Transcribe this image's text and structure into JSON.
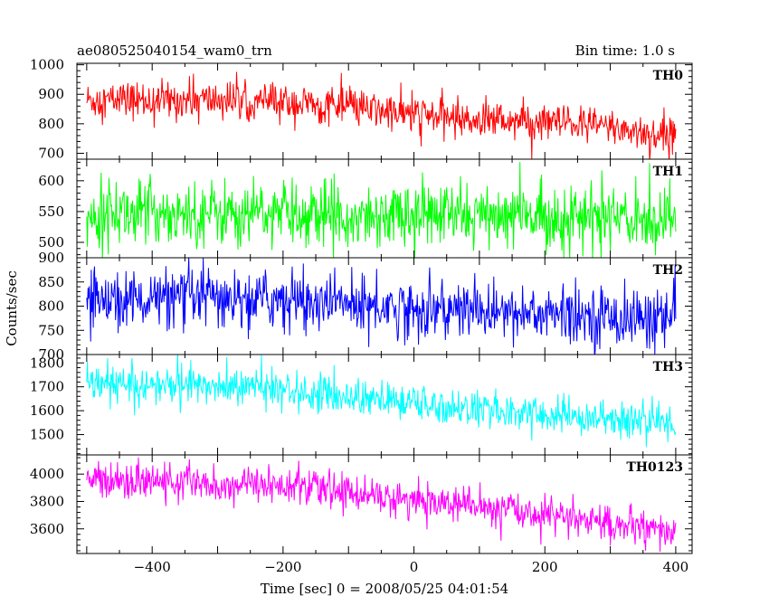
{
  "header": {
    "title": "ae080525040154_wam0_trn",
    "bin_time": "Bin time: 1.0 s"
  },
  "chart_data": {
    "type": "line",
    "xlabel": "Time [sec] 0 = 2008/05/25 04:01:54",
    "ylabel": "Counts/sec",
    "xlim": [
      -515,
      425
    ],
    "x_ticks": [
      -400,
      -200,
      0,
      200,
      400
    ],
    "x_tick_labels": [
      "−400",
      "−200",
      "0",
      "200",
      "400"
    ],
    "x_range": [
      -500,
      400
    ],
    "grid": false,
    "panels": [
      {
        "name": "TH0",
        "color": "#ff0000",
        "ylim": [
          680,
          1005
        ],
        "y_ticks": [
          700,
          800,
          900,
          1000
        ],
        "trend": [
          [
            -500,
            880
          ],
          [
            -250,
            880
          ],
          [
            -100,
            855
          ],
          [
            0,
            830
          ],
          [
            150,
            810
          ],
          [
            300,
            790
          ],
          [
            400,
            750
          ]
        ],
        "noise": 40,
        "spike_prob": 0.03,
        "spike_amp": 55
      },
      {
        "name": "TH1",
        "color": "#00ff00",
        "ylim": [
          475,
          635
        ],
        "y_ticks": [
          500,
          550,
          600
        ],
        "trend": [
          [
            -500,
            550
          ],
          [
            0,
            545
          ],
          [
            400,
            538
          ]
        ],
        "noise": 33,
        "spike_prob": 0.03,
        "spike_amp": 30
      },
      {
        "name": "TH2",
        "color": "#0000ff",
        "ylim": [
          700,
          900
        ],
        "y_ticks": [
          700,
          750,
          800,
          850,
          900
        ],
        "trend": [
          [
            -500,
            815
          ],
          [
            -200,
            815
          ],
          [
            0,
            795
          ],
          [
            200,
            785
          ],
          [
            400,
            770
          ]
        ],
        "noise": 38,
        "spike_prob": 0.03,
        "spike_amp": 40
      },
      {
        "name": "TH3",
        "color": "#00ffff",
        "ylim": [
          1415,
          1835
        ],
        "y_ticks": [
          1500,
          1600,
          1700,
          1800
        ],
        "trend": [
          [
            -500,
            1710
          ],
          [
            -250,
            1700
          ],
          [
            0,
            1630
          ],
          [
            200,
            1580
          ],
          [
            400,
            1550
          ]
        ],
        "noise": 48,
        "spike_prob": 0.03,
        "spike_amp": 60
      },
      {
        "name": "TH0123",
        "color": "#ff00ff",
        "ylim": [
          3420,
          4140
        ],
        "y_ticks": [
          3600,
          3800,
          4000
        ],
        "trend": [
          [
            -500,
            3960
          ],
          [
            -200,
            3920
          ],
          [
            0,
            3810
          ],
          [
            200,
            3710
          ],
          [
            400,
            3560
          ]
        ],
        "noise": 80,
        "spike_prob": 0.03,
        "spike_amp": 90
      }
    ]
  }
}
